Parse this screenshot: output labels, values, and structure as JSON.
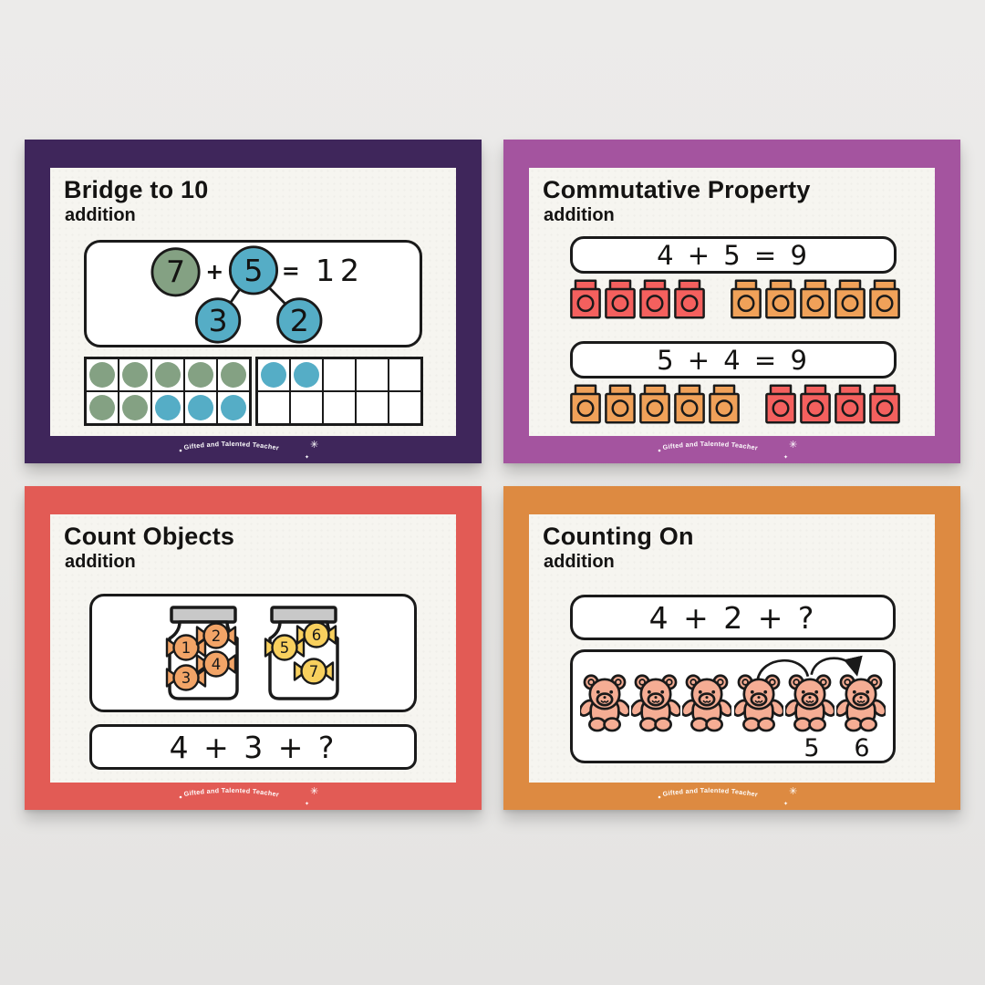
{
  "brand": "Gifted and Talented Teacher",
  "icons": {
    "sparkle_large": "✳",
    "sparkle_small": "✦"
  },
  "colors": {
    "page_background": "#e9e8e6",
    "paper": "#f6f5f0",
    "ink": "#1a1a1a",
    "panel_background": "#ffffff"
  },
  "cards": [
    {
      "title": "Bridge to 10",
      "subtitle": "addition",
      "border_color": "#3f265b",
      "number_bond": {
        "addend1": "7",
        "operator": "+",
        "addend2": "5",
        "equals": "=",
        "sum": "12",
        "part1": "3",
        "part2": "2",
        "addend1_color": "#84a183",
        "addend2_color": "#55adc6",
        "parts_color": "#55adc6"
      },
      "dot_colors": {
        "g": "#84a183",
        "b": "#55adc6"
      },
      "ten_frames": [
        {
          "rows": [
            [
              "g",
              "g",
              "g",
              "g",
              "g"
            ],
            [
              "g",
              "g",
              "b",
              "b",
              "b"
            ]
          ]
        },
        {
          "rows": [
            [
              "b",
              "b",
              "",
              "",
              ""
            ],
            [
              "",
              "",
              "",
              "",
              ""
            ]
          ]
        }
      ]
    },
    {
      "title": "Commutative Property",
      "subtitle": "addition",
      "border_color": "#a4549f",
      "equations": [
        "4 + 5 = 9",
        "5 + 4 = 9"
      ],
      "block_colors": {
        "red": "#f4605e",
        "orange": "#f0a159"
      },
      "block_rows": [
        {
          "groups": [
            {
              "count": 4,
              "color": "red"
            },
            {
              "count": 5,
              "color": "orange"
            }
          ]
        },
        {
          "groups": [
            {
              "count": 5,
              "color": "orange"
            },
            {
              "count": 4,
              "color": "red"
            }
          ]
        }
      ]
    },
    {
      "title": "Count Objects",
      "subtitle": "addition",
      "border_color": "#e25b55",
      "equation": "4 + 3 + ?",
      "lid_color": "#c8c8c8",
      "jars": [
        {
          "candies": [
            {
              "number": "1",
              "color": "#f2a467"
            },
            {
              "number": "2",
              "color": "#f2a467"
            },
            {
              "number": "3",
              "color": "#f2a467"
            },
            {
              "number": "4",
              "color": "#f2a467"
            }
          ]
        },
        {
          "candies": [
            {
              "number": "5",
              "color": "#f8d05e"
            },
            {
              "number": "6",
              "color": "#f8d05e"
            },
            {
              "number": "7",
              "color": "#f8d05e"
            }
          ]
        }
      ]
    },
    {
      "title": "Counting On",
      "subtitle": "addition",
      "border_color": "#dd8a41",
      "equation": "4 + 2 + ?",
      "bear_color": "#f5ad94",
      "bear_count": 6,
      "bear_labels": [
        {
          "under_bear": 5,
          "text": "5"
        },
        {
          "under_bear": 6,
          "text": "6"
        }
      ]
    }
  ]
}
